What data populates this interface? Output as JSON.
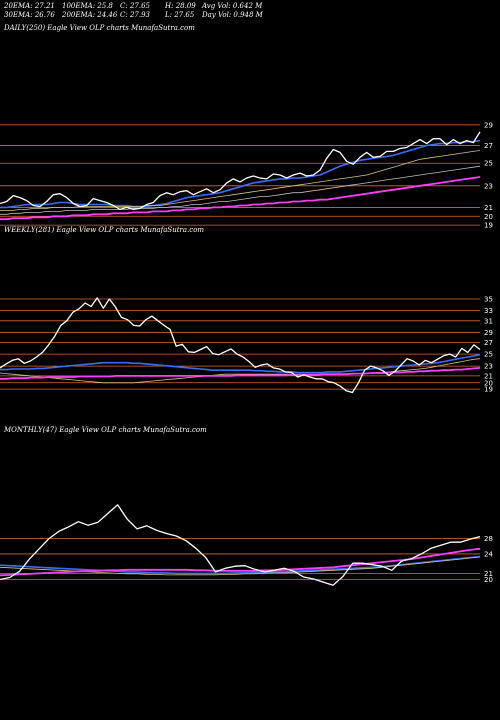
{
  "header": {
    "col1": [
      "20EMA: 27.21",
      "30EMA: 26.76"
    ],
    "col2": [
      "100EMA: 25.8",
      "200EMA: 24.46"
    ],
    "col3": [
      "C: 27.65",
      "C: 27.93"
    ],
    "col4": [
      "H: 28.09",
      "L: 27.65"
    ],
    "col5": [
      "Avg Vol: 0.642  M",
      "Day Vol: 0.948  M"
    ]
  },
  "colors": {
    "background": "#000000",
    "price": "#ffffff",
    "hline": "#e06a2a",
    "ema_blue": "#3a6bff",
    "ema_magenta": "#ff3cff",
    "ema_thin": [
      "#d9c27a",
      "#bdbdbd",
      "#a0784a"
    ]
  },
  "chart_data": [
    {
      "type": "line",
      "panel": "daily",
      "title": "DAILY(250) Eagle  View  OLP charts MunafaSutra.com",
      "y_ticks": [
        "29",
        "27",
        "25",
        "23",
        "21",
        "20",
        "19"
      ],
      "ylim": [
        18.2,
        29.6
      ],
      "hlines": [
        29.1,
        27,
        25.2,
        22.9,
        20.7,
        19.8,
        18.9
      ],
      "series": [
        {
          "values": [
            21.1,
            21.3,
            21.9,
            21.7,
            21.4,
            20.9,
            20.8,
            21.3,
            22.0,
            22.1,
            21.7,
            21.1,
            20.8,
            20.9,
            21.6,
            21.4,
            21.2,
            20.9,
            20.5,
            20.7,
            20.5,
            20.6,
            21.0,
            21.2,
            21.9,
            22.2,
            22.0,
            22.3,
            22.4,
            22.0,
            22.3,
            22.6,
            22.2,
            22.5,
            23.2,
            23.6,
            23.3,
            23.7,
            23.9,
            23.7,
            23.6,
            24.1,
            24.0,
            23.7,
            24.0,
            24.2,
            23.9,
            24.0,
            24.5,
            25.7,
            26.6,
            26.3,
            25.4,
            25.1,
            25.8,
            26.3,
            25.8,
            25.9,
            26.4,
            26.4,
            26.7,
            26.8,
            27.2,
            27.6,
            27.2,
            27.7,
            27.7,
            27.1,
            27.6,
            27.2,
            27.5,
            27.3,
            28.4
          ]
        },
        {
          "values": [
            20.7,
            20.7,
            20.8,
            20.9,
            21.0,
            21.0,
            21.0,
            21.0,
            21.1,
            21.2,
            21.2,
            21.1,
            21.0,
            21.0,
            21.0,
            21.0,
            21.0,
            20.9,
            20.9,
            20.9,
            20.8,
            20.8,
            20.8,
            20.9,
            21.0,
            21.1,
            21.3,
            21.5,
            21.7,
            21.8,
            21.9,
            22.0,
            22.1,
            22.2,
            22.4,
            22.6,
            22.8,
            23.0,
            23.2,
            23.3,
            23.4,
            23.5,
            23.6,
            23.6,
            23.7,
            23.7,
            23.8,
            23.9,
            24.0,
            24.3,
            24.6,
            24.9,
            25.1,
            25.3,
            25.5,
            25.6,
            25.7,
            25.8,
            25.9,
            26.0,
            26.2,
            26.4,
            26.6,
            26.8,
            27.0,
            27.1,
            27.2,
            27.2,
            27.3,
            27.3,
            27.4,
            27.4,
            27.5
          ]
        },
        {
          "values": [
            20.4,
            20.4,
            20.4,
            20.5,
            20.5,
            20.6,
            20.6,
            20.6,
            20.7,
            20.7,
            20.7,
            20.7,
            20.8,
            20.8,
            20.8,
            20.8,
            20.8,
            20.8,
            20.8,
            20.8,
            20.8,
            20.8,
            20.9,
            20.9,
            20.9,
            21.0,
            21.1,
            21.2,
            21.3,
            21.4,
            21.5,
            21.6,
            21.7,
            21.8,
            21.9,
            22.0,
            22.1,
            22.2,
            22.3,
            22.4,
            22.5,
            22.6,
            22.7,
            22.8,
            22.9,
            23.0,
            23.1,
            23.2,
            23.3,
            23.4,
            23.5,
            23.6,
            23.7,
            23.8,
            23.9,
            24.0,
            24.2,
            24.4,
            24.6,
            24.8,
            25.0,
            25.2,
            25.4,
            25.6,
            25.7,
            25.8,
            25.9,
            26.0,
            26.1,
            26.2,
            26.3,
            26.4,
            26.5
          ]
        },
        {
          "values": [
            20.0,
            20.0,
            20.1,
            20.1,
            20.2,
            20.2,
            20.2,
            20.3,
            20.3,
            20.3,
            20.4,
            20.4,
            20.4,
            20.4,
            20.5,
            20.5,
            20.5,
            20.5,
            20.5,
            20.5,
            20.6,
            20.6,
            20.6,
            20.6,
            20.7,
            20.7,
            20.8,
            20.8,
            20.9,
            21.0,
            21.0,
            21.1,
            21.2,
            21.3,
            21.3,
            21.4,
            21.5,
            21.6,
            21.7,
            21.8,
            21.8,
            21.9,
            22.0,
            22.1,
            22.2,
            22.2,
            22.3,
            22.4,
            22.5,
            22.6,
            22.7,
            22.8,
            22.9,
            23.0,
            23.1,
            23.2,
            23.3,
            23.4,
            23.5,
            23.6,
            23.7,
            23.8,
            23.9,
            24.0,
            24.1,
            24.2,
            24.3,
            24.4,
            24.5,
            24.6,
            24.7,
            24.8,
            24.9
          ]
        },
        {
          "values": [
            19.5,
            19.5,
            19.6,
            19.6,
            19.6,
            19.7,
            19.7,
            19.7,
            19.8,
            19.8,
            19.8,
            19.9,
            19.9,
            19.9,
            20.0,
            20.0,
            20.0,
            20.1,
            20.1,
            20.1,
            20.2,
            20.2,
            20.2,
            20.3,
            20.3,
            20.3,
            20.4,
            20.4,
            20.5,
            20.5,
            20.6,
            20.6,
            20.7,
            20.7,
            20.8,
            20.8,
            20.9,
            20.9,
            21.0,
            21.0,
            21.1,
            21.1,
            21.2,
            21.2,
            21.3,
            21.3,
            21.4,
            21.4,
            21.5,
            21.5,
            21.6,
            21.7,
            21.8,
            21.9,
            22.0,
            22.1,
            22.2,
            22.3,
            22.4,
            22.5,
            22.6,
            22.7,
            22.8,
            22.9,
            23.0,
            23.1,
            23.2,
            23.3,
            23.4,
            23.5,
            23.6,
            23.7,
            23.8
          ]
        }
      ]
    },
    {
      "type": "line",
      "panel": "weekly",
      "title": "WEEKLY(281) Eagle  View  OLP charts MunafaSutra.com",
      "y_ticks": [
        "35",
        "33",
        "31",
        "29",
        "27",
        "25",
        "23",
        "21",
        "20",
        "19"
      ],
      "ylim": [
        17.5,
        35.8
      ],
      "hlines": [
        35.1,
        33.1,
        31.3,
        29.3,
        27.5,
        25.5,
        23.4,
        21.7,
        20.5,
        19.4
      ],
      "series": [
        {
          "values": [
            23.1,
            23.8,
            24.4,
            24.7,
            23.9,
            24.3,
            25.0,
            25.8,
            27.1,
            28.6,
            30.5,
            31.3,
            32.8,
            33.4,
            34.4,
            33.8,
            35.3,
            33.5,
            35.1,
            33.7,
            31.9,
            31.5,
            30.5,
            30.4,
            31.5,
            32.1,
            31.3,
            30.5,
            29.8,
            26.9,
            27.2,
            25.9,
            25.8,
            26.3,
            26.8,
            25.6,
            25.4,
            25.9,
            26.4,
            25.5,
            25.0,
            24.2,
            23.2,
            23.6,
            23.8,
            23.1,
            22.9,
            22.4,
            22.3,
            21.5,
            21.9,
            21.5,
            21.2,
            21.2,
            20.7,
            20.5,
            19.9,
            19.1,
            18.8,
            20.5,
            22.7,
            23.4,
            23.1,
            22.6,
            21.8,
            22.5,
            23.6,
            24.7,
            24.3,
            23.6,
            24.4,
            24.0,
            24.6,
            25.2,
            25.5,
            25.0,
            26.5,
            25.8,
            27.1,
            26.3
          ]
        },
        {
          "values": [
            22.8,
            22.8,
            22.9,
            22.9,
            22.9,
            22.9,
            23.0,
            23.0,
            23.1,
            23.2,
            23.3,
            23.4,
            23.5,
            23.6,
            23.7,
            23.8,
            23.9,
            24.0,
            24.0,
            24.0,
            24.0,
            24.0,
            23.9,
            23.9,
            23.8,
            23.7,
            23.6,
            23.5,
            23.4,
            23.3,
            23.2,
            23.1,
            23.0,
            22.9,
            22.8,
            22.7,
            22.7,
            22.7,
            22.7,
            22.7,
            22.7,
            22.7,
            22.6,
            22.6,
            22.5,
            22.5,
            22.4,
            22.4,
            22.4,
            22.3,
            22.3,
            22.3,
            22.3,
            22.3,
            22.4,
            22.4,
            22.4,
            22.5,
            22.6,
            22.7,
            22.8,
            22.9,
            23.0,
            23.1,
            23.2,
            23.3,
            23.4,
            23.5,
            23.6,
            23.7,
            23.8,
            23.9,
            24.0,
            24.2,
            24.4,
            24.6,
            24.8,
            25.0,
            25.2,
            25.4
          ]
        },
        {
          "values": [
            22.2,
            22.1,
            22.0,
            21.9,
            21.8,
            21.7,
            21.6,
            21.5,
            21.4,
            21.3,
            21.2,
            21.1,
            21.0,
            20.9,
            20.8,
            20.7,
            20.6,
            20.5,
            20.5,
            20.5,
            20.5,
            20.5,
            20.5,
            20.6,
            20.7,
            20.8,
            20.9,
            21.0,
            21.1,
            21.2,
            21.3,
            21.4,
            21.5,
            21.6,
            21.7,
            21.8,
            21.9,
            22.0,
            22.0,
            22.0,
            22.0,
            22.0,
            22.0,
            22.0,
            22.0,
            22.0,
            22.0,
            22.0,
            22.0,
            22.0,
            22.0,
            22.0,
            22.0,
            22.0,
            22.0,
            22.0,
            22.0,
            22.0,
            22.0,
            22.1,
            22.1,
            22.2,
            22.3,
            22.3,
            22.4,
            22.5,
            22.6,
            22.7,
            22.8,
            22.9,
            23.0,
            23.2,
            23.4,
            23.6,
            23.8,
            24.0,
            24.2,
            24.4,
            24.6,
            24.7
          ]
        },
        {
          "values": [
            21.2,
            21.2,
            21.3,
            21.3,
            21.3,
            21.4,
            21.4,
            21.4,
            21.5,
            21.5,
            21.5,
            21.5,
            21.5,
            21.6,
            21.6,
            21.6,
            21.6,
            21.6,
            21.6,
            21.7,
            21.7,
            21.7,
            21.7,
            21.7,
            21.7,
            21.7,
            21.7,
            21.7,
            21.7,
            21.7,
            21.7,
            21.7,
            21.7,
            21.7,
            21.7,
            21.7,
            21.7,
            21.7,
            21.7,
            21.8,
            21.8,
            21.8,
            21.8,
            21.8,
            21.8,
            21.8,
            21.8,
            21.8,
            21.9,
            21.9,
            21.9,
            21.9,
            21.9,
            22.0,
            22.0,
            22.0,
            22.0,
            22.0,
            22.1,
            22.1,
            22.1,
            22.2,
            22.2,
            22.2,
            22.3,
            22.3,
            22.3,
            22.4,
            22.4,
            22.5,
            22.5,
            22.6,
            22.6,
            22.7,
            22.7,
            22.8,
            22.8,
            22.9,
            23.0,
            23.1
          ]
        }
      ]
    },
    {
      "type": "line",
      "panel": "monthly",
      "title": "MONTHLY(47) Eagle  View  OLP charts MunafaSutra.com",
      "y_ticks": [
        "28",
        "24",
        "21",
        "20"
      ],
      "ylim": [
        16.0,
        37.5
      ],
      "hlines": [
        28.0,
        25.0,
        21.2,
        20.0
      ],
      "series": [
        {
          "values": [
            20.0,
            20.4,
            21.6,
            24.0,
            26.0,
            28.0,
            29.4,
            30.3,
            31.3,
            30.6,
            31.2,
            32.9,
            34.6,
            31.8,
            29.9,
            30.5,
            29.6,
            29.0,
            28.5,
            27.6,
            26.1,
            24.3,
            21.5,
            22.2,
            22.6,
            22.7,
            22.0,
            21.5,
            21.8,
            22.2,
            21.6,
            20.5,
            20.1,
            19.5,
            18.9,
            20.6,
            23.2,
            23.2,
            22.9,
            22.6,
            21.8,
            23.6,
            24.1,
            25.0,
            26.1,
            26.7,
            27.3,
            27.3,
            27.9,
            28.4
          ]
        },
        {
          "values": [
            22.8,
            22.7,
            22.6,
            22.5,
            22.4,
            22.3,
            22.2,
            22.1,
            22.0,
            21.9,
            21.8,
            21.7,
            21.6,
            21.5,
            21.5,
            21.4,
            21.3,
            21.3,
            21.2,
            21.2,
            21.2,
            21.2,
            21.2,
            21.2,
            21.3,
            21.3,
            21.4,
            21.4,
            21.5,
            21.5,
            21.6,
            21.7,
            21.8,
            21.9,
            22.0,
            22.1,
            22.2,
            22.3,
            22.4,
            22.5,
            22.7,
            22.9,
            23.1,
            23.3,
            23.5,
            23.7,
            23.9,
            24.1,
            24.3,
            24.5
          ]
        },
        {
          "values": [
            22.4,
            22.3,
            22.2,
            22.1,
            22.0,
            21.9,
            21.8,
            21.7,
            21.6,
            21.5,
            21.4,
            21.3,
            21.2,
            21.1,
            21.1,
            21.0,
            21.0,
            20.9,
            20.9,
            20.9,
            20.9,
            20.9,
            20.9,
            21.0,
            21.0,
            21.1,
            21.1,
            21.2,
            21.3,
            21.3,
            21.4,
            21.5,
            21.6,
            21.7,
            21.8,
            21.9,
            22.0,
            22.1,
            22.2,
            22.4,
            22.6,
            22.8,
            23.0,
            23.2,
            23.4,
            23.6,
            23.8,
            24.0,
            24.2,
            24.4
          ]
        },
        {
          "values": [
            20.8,
            20.9,
            21.0,
            21.1,
            21.2,
            21.3,
            21.4,
            21.5,
            21.6,
            21.6,
            21.7,
            21.8,
            21.8,
            21.9,
            21.9,
            21.9,
            21.9,
            21.9,
            21.9,
            21.9,
            21.8,
            21.8,
            21.7,
            21.7,
            21.7,
            21.7,
            21.7,
            21.8,
            21.8,
            21.9,
            22.0,
            22.1,
            22.2,
            22.3,
            22.4,
            22.6,
            22.8,
            23.0,
            23.2,
            23.4,
            23.6,
            23.8,
            24.0,
            24.3,
            24.6,
            24.9,
            25.2,
            25.5,
            25.8,
            26.0
          ]
        }
      ]
    }
  ]
}
